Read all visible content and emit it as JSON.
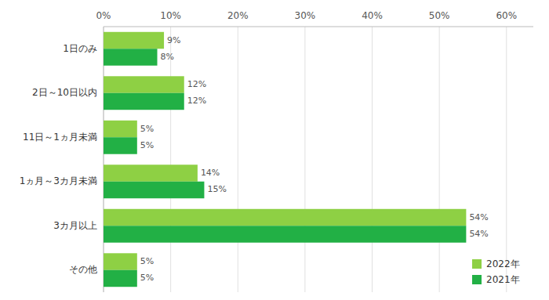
{
  "chart_data": {
    "type": "bar",
    "orientation": "horizontal",
    "categories": [
      "1日のみ",
      "2日～10日以内",
      "11日～1ヵ月未満",
      "1ヵ月～3カ月未満",
      "3カ月以上",
      "その他"
    ],
    "series": [
      {
        "name": "2022年",
        "color": "#8ed044",
        "values": [
          9,
          12,
          5,
          14,
          54,
          5
        ],
        "value_labels": [
          "9%",
          "12%",
          "5%",
          "14%",
          "54%",
          "5%"
        ]
      },
      {
        "name": "2021年",
        "color": "#22b045",
        "values": [
          8,
          12,
          5,
          15,
          54,
          5
        ],
        "value_labels": [
          "8%",
          "12%",
          "5%",
          "15%",
          "54%",
          "5%"
        ]
      }
    ],
    "xlim": [
      0,
      64
    ],
    "xticks": [
      {
        "value": 0,
        "label": "0%"
      },
      {
        "value": 10,
        "label": "10%"
      },
      {
        "value": 20,
        "label": "20%"
      },
      {
        "value": 30,
        "label": "30%"
      },
      {
        "value": 40,
        "label": "40%"
      },
      {
        "value": 50,
        "label": "50%"
      },
      {
        "value": 60,
        "label": "60%"
      }
    ],
    "grid": true,
    "legend": "lower right",
    "data_labels": true
  }
}
